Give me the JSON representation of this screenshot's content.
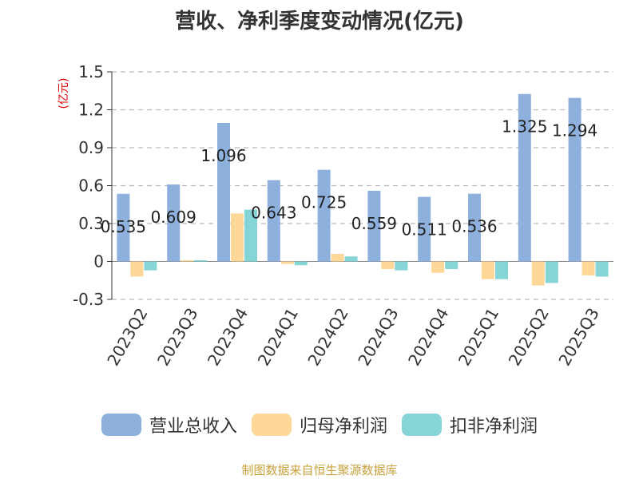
{
  "chart_data": {
    "type": "bar",
    "title": "营收、净利季度变动情况(亿元)",
    "ylabel": "(亿元)",
    "xlabel": "",
    "categories": [
      "2023Q2",
      "2023Q3",
      "2023Q4",
      "2024Q1",
      "2024Q2",
      "2024Q3",
      "2024Q4",
      "2025Q1",
      "2025Q2",
      "2025Q3"
    ],
    "series": [
      {
        "name": "营业总收入",
        "color": "#8eb0dc",
        "values": [
          0.535,
          0.609,
          1.096,
          0.643,
          0.725,
          0.559,
          0.511,
          0.536,
          1.325,
          1.294
        ],
        "labels": [
          "0.535",
          "0.609",
          "1.096",
          "0.643",
          "0.725",
          "0.559",
          "0.511",
          "0.536",
          "1.325",
          "1.294"
        ]
      },
      {
        "name": "归母净利润",
        "color": "#fdd898",
        "values": [
          -0.12,
          0.01,
          0.38,
          -0.02,
          0.06,
          -0.06,
          -0.09,
          -0.14,
          -0.19,
          -0.11
        ]
      },
      {
        "name": "扣非净利润",
        "color": "#85d5d6",
        "values": [
          -0.07,
          0.01,
          0.41,
          -0.03,
          0.04,
          -0.07,
          -0.06,
          -0.14,
          -0.17,
          -0.12
        ]
      }
    ],
    "ylim": [
      -0.3,
      1.5
    ],
    "yticks": [
      1.5,
      1.2,
      0.9,
      0.6,
      0.3,
      0,
      -0.3
    ],
    "ytick_labels": [
      "1.5",
      "1.2",
      "0.9",
      "0.6",
      "0.3",
      "0",
      "-0.3"
    ],
    "grid": true,
    "legend_position": "bottom"
  },
  "footer": "制图数据来自恒生聚源数据库"
}
